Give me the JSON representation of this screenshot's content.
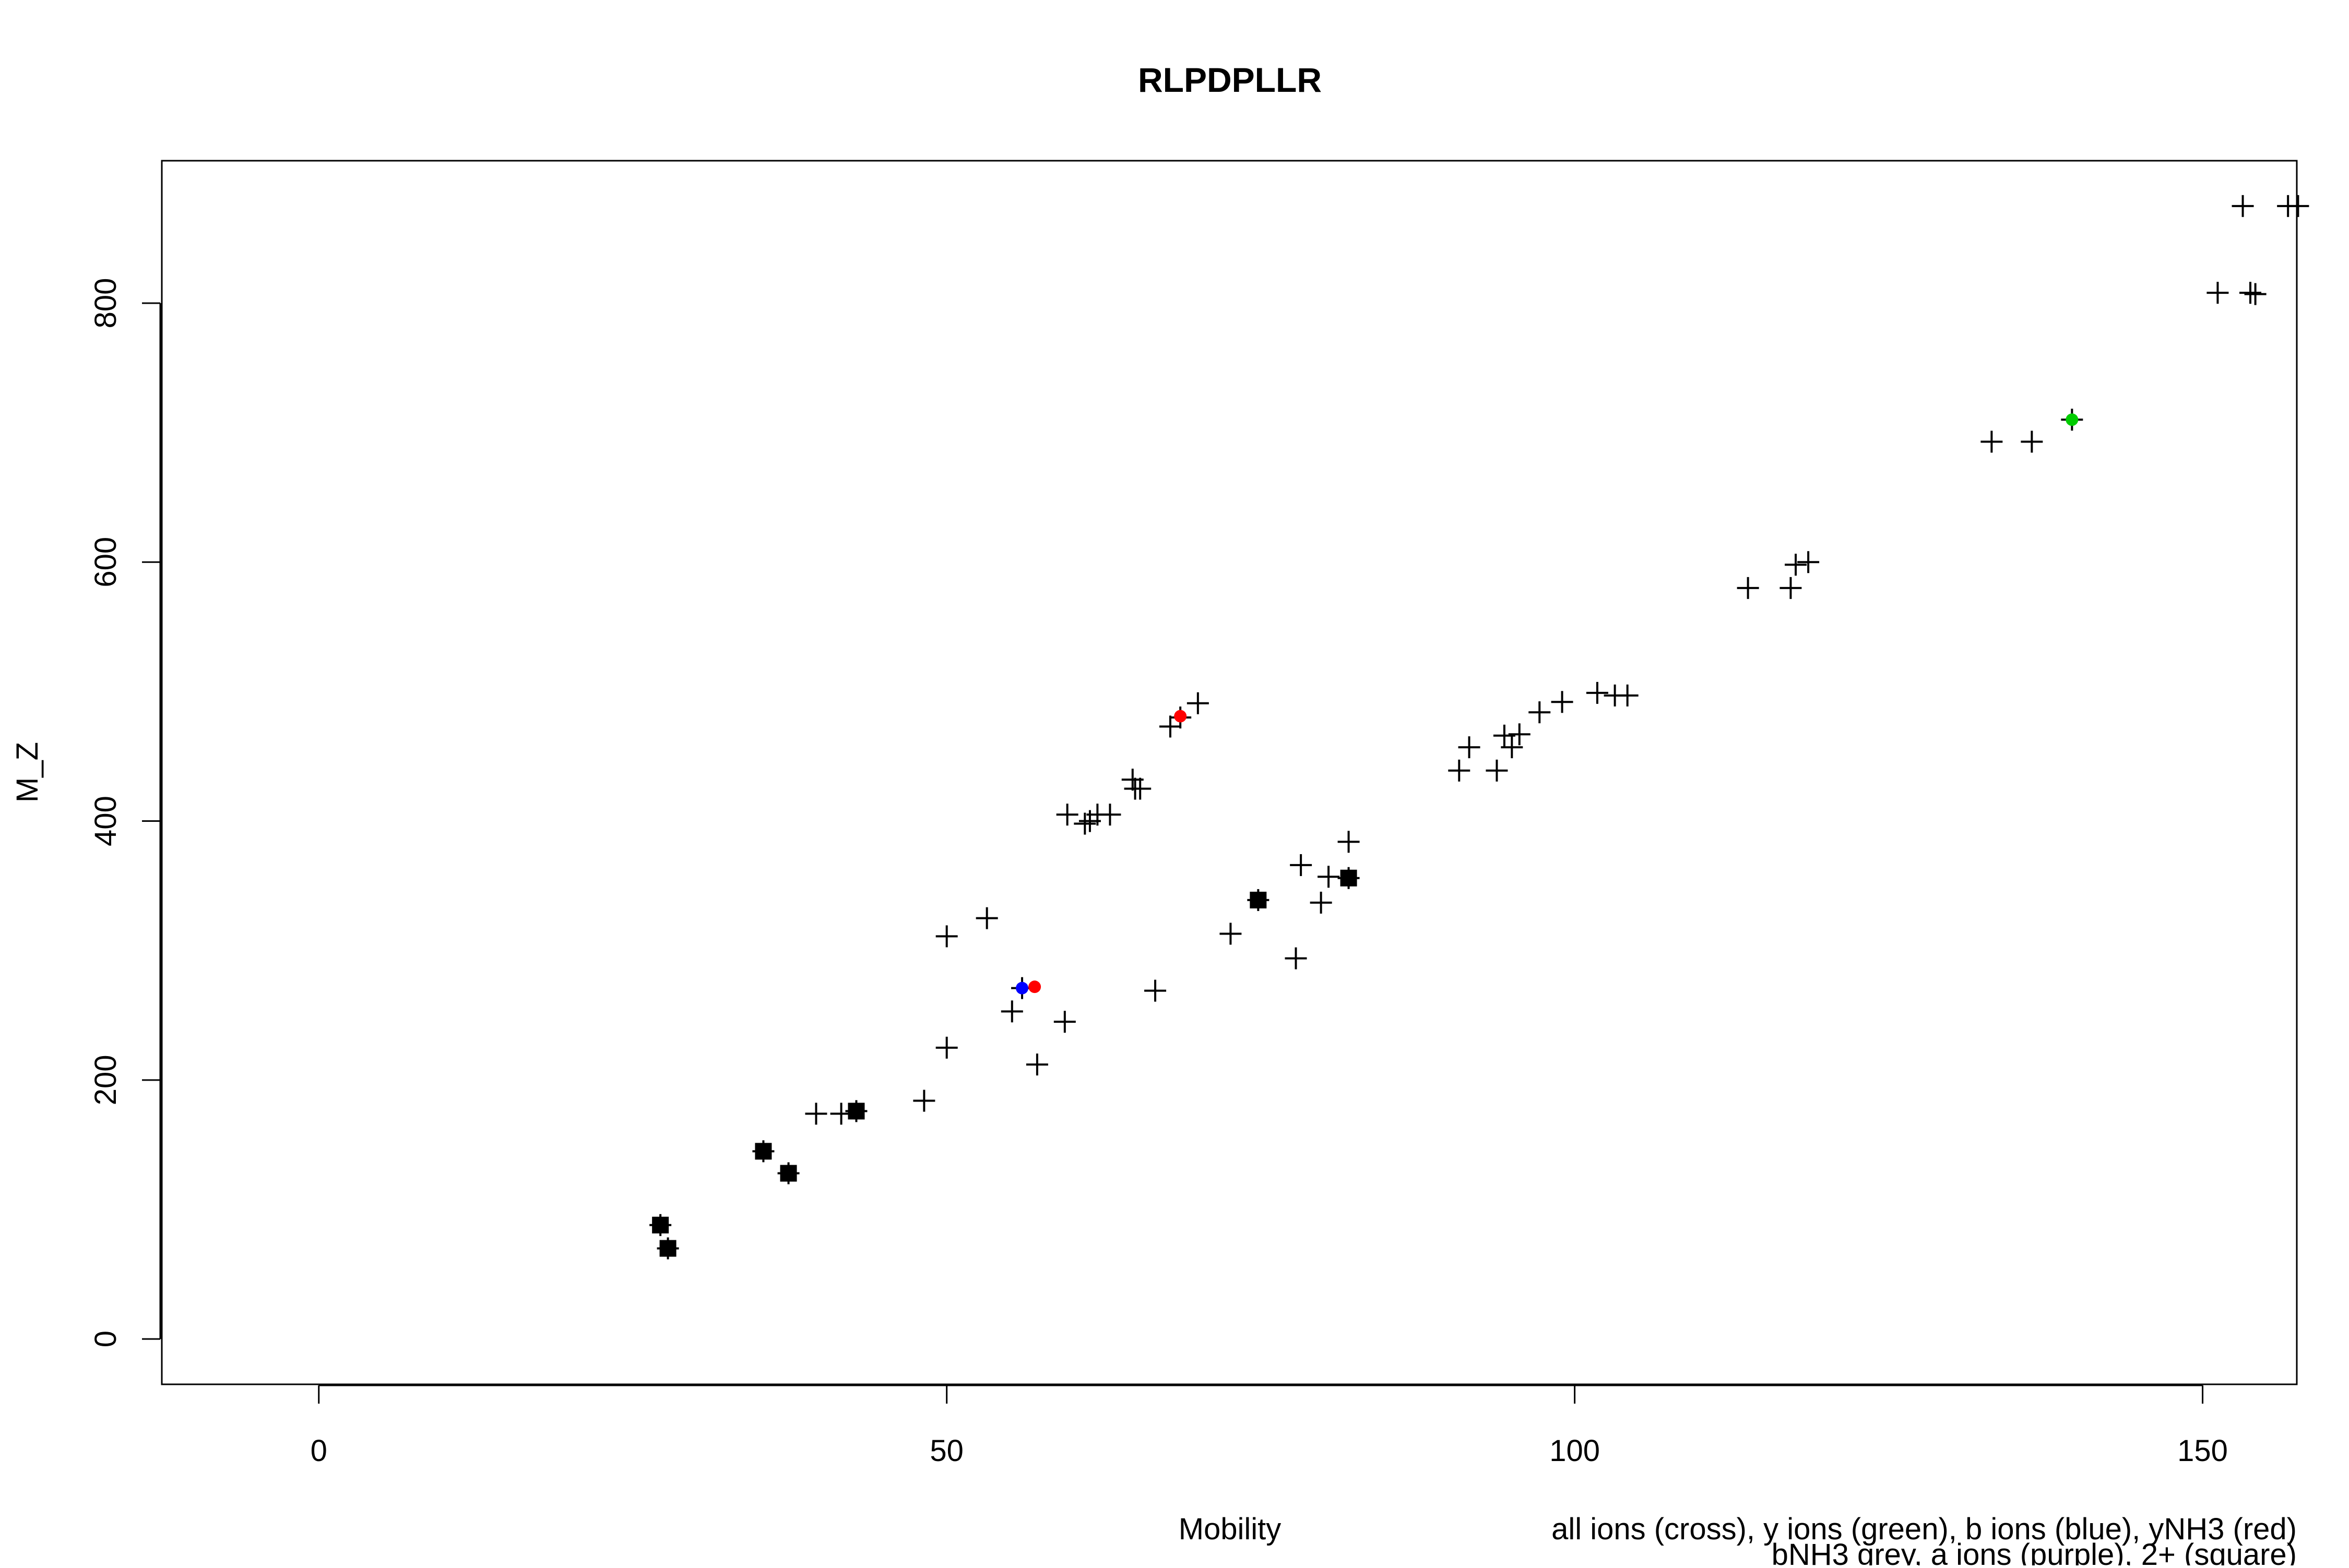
{
  "chart_data": {
    "type": "scatter",
    "title": "RLPDPLLR",
    "xlabel": "Mobility",
    "ylabel": "M_Z",
    "legend_lines": [
      "all ions (cross), y ions (green), b ions (blue), yNH3 (red)",
      "bNH3 grey, a ions (purple), 2+ (square)"
    ],
    "legend_placement": "bottom-right",
    "xlim": [
      -12.5,
      157.5
    ],
    "ylim": [
      -35,
      910
    ],
    "x_ticks": [
      0,
      50,
      100,
      150
    ],
    "y_ticks": [
      0,
      200,
      400,
      600,
      800
    ],
    "grid": false,
    "colors": {
      "all_ions": "#000000",
      "y_ions": "#00cc00",
      "b_ions": "#0000ff",
      "yNH3": "#ff0000",
      "bNH3": "#9e9e9e",
      "a_ions": "#a020f0",
      "two_plus": "#000000"
    },
    "series": [
      {
        "marker": "cross",
        "color": "#000000",
        "points": [
          [
            27.2,
            88
          ],
          [
            27.8,
            70
          ],
          [
            35.4,
            145
          ],
          [
            37.4,
            128
          ],
          [
            39.6,
            174
          ],
          [
            41.6,
            174
          ],
          [
            42.8,
            176
          ],
          [
            48.2,
            184
          ],
          [
            50,
            225
          ],
          [
            50,
            311
          ],
          [
            53.2,
            325
          ],
          [
            55.2,
            253
          ],
          [
            56,
            271
          ],
          [
            57.2,
            212
          ],
          [
            59.4,
            245
          ],
          [
            59.6,
            405
          ],
          [
            61,
            398
          ],
          [
            61.4,
            400
          ],
          [
            62,
            405
          ],
          [
            63,
            405
          ],
          [
            64.8,
            432
          ],
          [
            65,
            425
          ],
          [
            65.4,
            425
          ],
          [
            66.6,
            269
          ],
          [
            67.8,
            473
          ],
          [
            68.6,
            480
          ],
          [
            70,
            491
          ],
          [
            72.6,
            313
          ],
          [
            74.8,
            339
          ],
          [
            77.8,
            294
          ],
          [
            78.2,
            366
          ],
          [
            79.8,
            337
          ],
          [
            80.4,
            357
          ],
          [
            82,
            356
          ],
          [
            82,
            384
          ],
          [
            90.8,
            439
          ],
          [
            91.6,
            457
          ],
          [
            93.8,
            439
          ],
          [
            94.4,
            466
          ],
          [
            95,
            457
          ],
          [
            95.6,
            467
          ],
          [
            97.2,
            484
          ],
          [
            99,
            492
          ],
          [
            101.8,
            499
          ],
          [
            103.2,
            497
          ],
          [
            104.2,
            497
          ],
          [
            113.8,
            580
          ],
          [
            117.2,
            580
          ],
          [
            117.6,
            598
          ],
          [
            118.6,
            600
          ],
          [
            133.2,
            693
          ],
          [
            136.4,
            693
          ],
          [
            139.6,
            710
          ],
          [
            151.2,
            808
          ],
          [
            153.2,
            875
          ],
          [
            153.8,
            808
          ],
          [
            154.2,
            807
          ],
          [
            156.8,
            875
          ],
          [
            157.6,
            875
          ]
        ]
      },
      {
        "marker": "square",
        "color": "#000000",
        "points": [
          [
            27.2,
            88
          ],
          [
            27.8,
            70
          ],
          [
            35.4,
            145
          ],
          [
            37.4,
            128
          ],
          [
            42.8,
            176
          ],
          [
            74.8,
            339
          ],
          [
            82,
            356
          ]
        ]
      },
      {
        "marker": "dot",
        "color": "#00cc00",
        "points": [
          [
            139.6,
            710
          ]
        ]
      },
      {
        "marker": "dot",
        "color": "#0000ff",
        "points": [
          [
            56,
            271
          ]
        ]
      },
      {
        "marker": "dot",
        "color": "#ff0000",
        "points": [
          [
            57,
            272
          ],
          [
            68.6,
            481
          ]
        ]
      }
    ]
  }
}
